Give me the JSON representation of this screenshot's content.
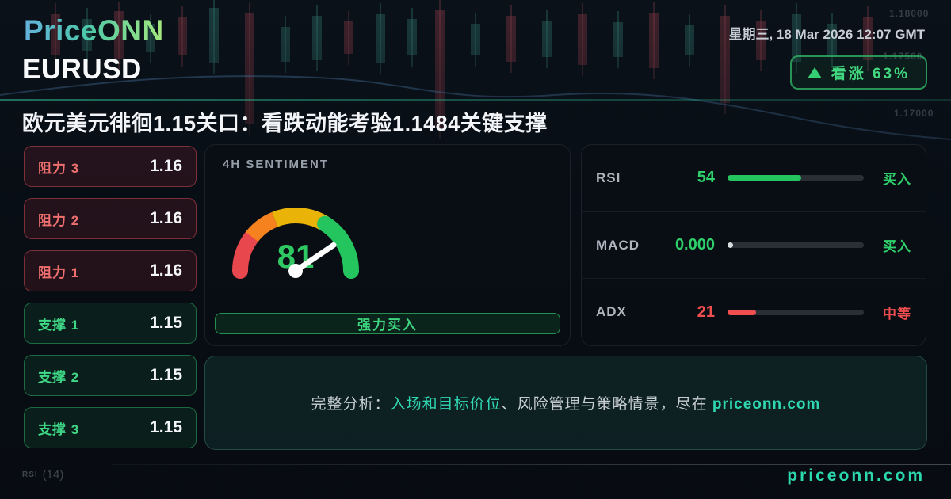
{
  "brand": {
    "logo": "PriceONN"
  },
  "header": {
    "datetime": "星期三, 18 Mar 2026 12:07 GMT",
    "symbol": "EURUSD",
    "bias_badge": {
      "icon": "up-triangle-icon",
      "label": "看涨 63%"
    },
    "headline": "欧元美元徘徊1.15关口：看跌动能考验1.1484关键支撑"
  },
  "levels": [
    {
      "kind": "resistance",
      "label": "阻力 3",
      "value": "1.16"
    },
    {
      "kind": "resistance",
      "label": "阻力 2",
      "value": "1.16"
    },
    {
      "kind": "resistance",
      "label": "阻力 1",
      "value": "1.16"
    },
    {
      "kind": "support",
      "label": "支撑 1",
      "value": "1.15"
    },
    {
      "kind": "support",
      "label": "支撑 2",
      "value": "1.15"
    },
    {
      "kind": "support",
      "label": "支撑 3",
      "value": "1.15"
    }
  ],
  "sentiment": {
    "title": "4H SENTIMENT",
    "score": 81,
    "max": 100,
    "verdict": "强力买入"
  },
  "indicators": [
    {
      "name": "RSI",
      "value": "54",
      "percent": 54,
      "signal": "买入",
      "tone": "bullish",
      "fill": "tone"
    },
    {
      "name": "MACD",
      "value": "0.000",
      "percent": 4,
      "signal": "买入",
      "tone": "bullish",
      "fill": "neutral"
    },
    {
      "name": "ADX",
      "value": "21",
      "percent": 21,
      "signal": "中等",
      "tone": "bearish",
      "fill": "tone"
    }
  ],
  "banner": {
    "prefix": "完整分析：",
    "highlight": "入场和目标价位",
    "middle": "、风险管理与策略情景，尽在 ",
    "site": "priceonn.com"
  },
  "footer": {
    "website": "priceonn.com"
  },
  "background": {
    "price_labels": [
      "1.18000",
      "1.17500",
      "1.17000"
    ],
    "indicator_label": "RSI (14)"
  },
  "colors": {
    "bullish": "#2fd06c",
    "bearish": "#f14f4f",
    "teal": "#2bd9ad",
    "gauge_segments": [
      "#e8484d",
      "#f6821f",
      "#eab308",
      "#24c55e"
    ]
  }
}
